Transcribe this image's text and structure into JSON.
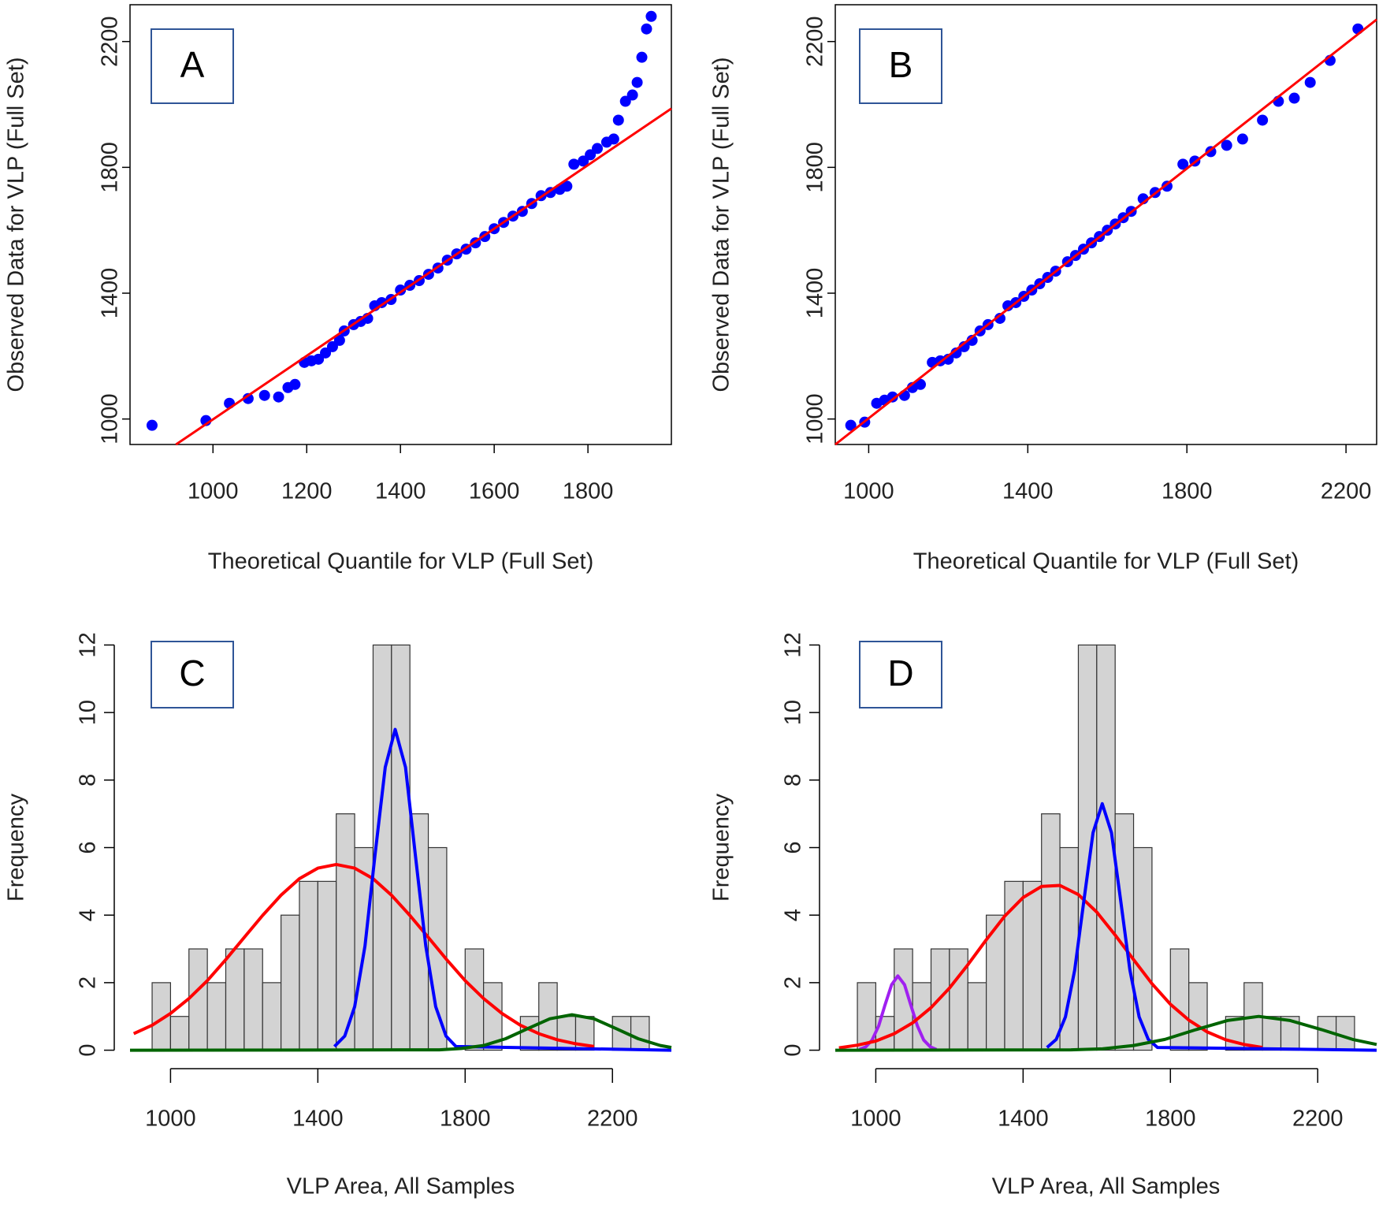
{
  "chart_data": [
    {
      "type": "scatter",
      "label": "A",
      "xlabel": "Theoretical Quantile for VLP (Full Set)",
      "ylabel": "Observed Data for VLP (Full Set)",
      "xlim": [
        823,
        1978
      ],
      "ylim": [
        919,
        2317
      ],
      "xticks": [
        1000,
        1200,
        1400,
        1600,
        1800
      ],
      "yticks": [
        1000,
        1400,
        1800,
        2200
      ],
      "color": "#0000ff",
      "x": [
        870,
        985,
        1035,
        1075,
        1110,
        1140,
        1160,
        1175,
        1195,
        1210,
        1225,
        1240,
        1255,
        1270,
        1280,
        1300,
        1315,
        1330,
        1345,
        1360,
        1380,
        1400,
        1420,
        1440,
        1460,
        1480,
        1500,
        1520,
        1540,
        1560,
        1580,
        1600,
        1620,
        1640,
        1660,
        1680,
        1700,
        1720,
        1740,
        1755,
        1770,
        1790,
        1805,
        1820,
        1840,
        1855,
        1865,
        1880,
        1895,
        1905,
        1915,
        1925,
        1935
      ],
      "values": [
        980,
        995,
        1050,
        1065,
        1075,
        1070,
        1100,
        1110,
        1180,
        1185,
        1190,
        1210,
        1230,
        1250,
        1280,
        1300,
        1310,
        1320,
        1360,
        1370,
        1380,
        1410,
        1425,
        1440,
        1460,
        1480,
        1505,
        1525,
        1540,
        1560,
        1580,
        1605,
        1625,
        1645,
        1660,
        1685,
        1710,
        1720,
        1730,
        1740,
        1810,
        1820,
        1840,
        1860,
        1880,
        1890,
        1950,
        2010,
        2030,
        2070,
        2150,
        2240,
        2280
      ],
      "line": {
        "color": "#ff0000",
        "x": [
          921,
          1978
        ],
        "values": [
          919,
          1987
        ]
      }
    },
    {
      "type": "scatter",
      "label": "B",
      "xlabel": "Theoretical Quantile for VLP (Full Set)",
      "ylabel": "Observed Data for VLP (Full Set)",
      "xlim": [
        916,
        2277
      ],
      "ylim": [
        919,
        2317
      ],
      "xticks": [
        1000,
        1400,
        1800,
        2200
      ],
      "yticks": [
        1000,
        1400,
        1800,
        2200
      ],
      "color": "#0000ff",
      "x": [
        955,
        990,
        1020,
        1040,
        1060,
        1090,
        1110,
        1130,
        1160,
        1180,
        1200,
        1220,
        1240,
        1260,
        1280,
        1300,
        1330,
        1350,
        1370,
        1390,
        1410,
        1430,
        1450,
        1470,
        1500,
        1520,
        1540,
        1560,
        1580,
        1600,
        1620,
        1640,
        1660,
        1690,
        1720,
        1750,
        1790,
        1820,
        1860,
        1900,
        1940,
        1990,
        2030,
        2070,
        2110,
        2160,
        2230
      ],
      "values": [
        980,
        990,
        1050,
        1060,
        1070,
        1075,
        1100,
        1110,
        1180,
        1185,
        1190,
        1210,
        1230,
        1250,
        1280,
        1300,
        1320,
        1360,
        1370,
        1390,
        1410,
        1430,
        1450,
        1470,
        1500,
        1520,
        1540,
        1560,
        1580,
        1600,
        1620,
        1640,
        1660,
        1700,
        1720,
        1740,
        1810,
        1820,
        1850,
        1870,
        1890,
        1950,
        2010,
        2020,
        2070,
        2140,
        2240
      ],
      "line": {
        "color": "#ff0000",
        "x": [
          916,
          2277
        ],
        "values": [
          919,
          2270
        ]
      }
    },
    {
      "type": "histogram",
      "label": "C",
      "xlabel": "VLP Area, All Samples",
      "ylabel": "Frequency",
      "xlim": [
        890,
        2360
      ],
      "ylim": [
        -0.5,
        12.5
      ],
      "xticks": [
        1000,
        1400,
        1800,
        2200
      ],
      "yticks": [
        0,
        2,
        4,
        6,
        8,
        10,
        12
      ],
      "color": "#d3d3d3",
      "bins": [
        950,
        1000,
        1050,
        1100,
        1150,
        1200,
        1250,
        1300,
        1350,
        1400,
        1450,
        1500,
        1550,
        1600,
        1650,
        1700,
        1750,
        1800,
        1850,
        1900,
        1950,
        2000,
        2050,
        2100,
        2150,
        2200,
        2250,
        2300
      ],
      "values": [
        2,
        1,
        3,
        2,
        3,
        3,
        2,
        4,
        5,
        5,
        7,
        6,
        12,
        12,
        7,
        6,
        0,
        3,
        2,
        0,
        1,
        2,
        1,
        1,
        0,
        1,
        1
      ],
      "curves": [
        {
          "color": "#ff0000",
          "x": [
            900,
            950,
            1000,
            1050,
            1100,
            1150,
            1200,
            1250,
            1300,
            1350,
            1400,
            1450,
            1500,
            1550,
            1600,
            1650,
            1700,
            1750,
            1800,
            1850,
            1900,
            1950,
            2000,
            2050,
            2100,
            2150
          ],
          "values": [
            0.49,
            0.74,
            1.09,
            1.53,
            2.06,
            2.68,
            3.34,
            3.99,
            4.59,
            5.08,
            5.39,
            5.5,
            5.39,
            5.08,
            4.59,
            3.99,
            3.34,
            2.68,
            2.06,
            1.53,
            1.09,
            0.74,
            0.49,
            0.31,
            0.19,
            0.11
          ]
        },
        {
          "color": "#0000ff",
          "x": [
            1445,
            1473,
            1500,
            1528,
            1555,
            1583,
            1610,
            1638,
            1665,
            1693,
            1720,
            1748,
            1775,
            2360
          ],
          "values": [
            0.11,
            0.42,
            1.29,
            3.09,
            5.76,
            8.38,
            9.5,
            8.38,
            5.76,
            3.09,
            1.29,
            0.42,
            0.11,
            0
          ]
        },
        {
          "color": "#006400",
          "x": [
            890,
            1730,
            1790,
            1850,
            1910,
            1970,
            2030,
            2090,
            2150,
            2210,
            2270,
            2330,
            2360
          ],
          "values": [
            0,
            0.01,
            0.05,
            0.14,
            0.34,
            0.64,
            0.93,
            1.05,
            0.93,
            0.64,
            0.34,
            0.14,
            0.08
          ]
        }
      ]
    },
    {
      "type": "histogram",
      "label": "D",
      "xlabel": "VLP Area, All Samples",
      "ylabel": "Frequency",
      "xlim": [
        890,
        2360
      ],
      "ylim": [
        -0.5,
        12.5
      ],
      "xticks": [
        1000,
        1400,
        1800,
        2200
      ],
      "yticks": [
        0,
        2,
        4,
        6,
        8,
        10,
        12
      ],
      "color": "#d3d3d3",
      "bins": [
        950,
        1000,
        1050,
        1100,
        1150,
        1200,
        1250,
        1300,
        1350,
        1400,
        1450,
        1500,
        1550,
        1600,
        1650,
        1700,
        1750,
        1800,
        1850,
        1900,
        1950,
        2000,
        2050,
        2100,
        2150,
        2200,
        2250,
        2300
      ],
      "values": [
        2,
        1,
        3,
        2,
        3,
        3,
        2,
        4,
        5,
        5,
        7,
        6,
        12,
        12,
        7,
        6,
        0,
        3,
        2,
        0,
        1,
        2,
        1,
        1,
        0,
        1,
        1
      ],
      "curves": [
        {
          "color": "#a020f0",
          "x": [
            955,
            973,
            990,
            1008,
            1025,
            1043,
            1060,
            1078,
            1095,
            1113,
            1130,
            1148,
            1165
          ],
          "values": [
            0.02,
            0.1,
            0.3,
            0.72,
            1.34,
            1.94,
            2.2,
            1.94,
            1.34,
            0.72,
            0.3,
            0.1,
            0.02
          ]
        },
        {
          "color": "#ff0000",
          "x": [
            900,
            950,
            1000,
            1050,
            1100,
            1150,
            1200,
            1250,
            1300,
            1350,
            1400,
            1450,
            1500,
            1550,
            1600,
            1650,
            1700,
            1750,
            1800,
            1850,
            1900,
            1950,
            2000,
            2050
          ],
          "values": [
            0.07,
            0.15,
            0.27,
            0.49,
            0.81,
            1.26,
            1.84,
            2.53,
            3.27,
            3.97,
            4.52,
            4.85,
            4.88,
            4.61,
            4.09,
            3.41,
            2.68,
            1.97,
            1.36,
            0.89,
            0.54,
            0.31,
            0.17,
            0.08
          ]
        },
        {
          "color": "#0000ff",
          "x": [
            1465,
            1490,
            1515,
            1540,
            1565,
            1590,
            1615,
            1640,
            1665,
            1690,
            1715,
            1740,
            1765,
            2360
          ],
          "values": [
            0.08,
            0.32,
            0.99,
            2.37,
            4.43,
            6.44,
            7.3,
            6.44,
            4.43,
            2.37,
            0.99,
            0.32,
            0.08,
            0
          ]
        },
        {
          "color": "#006400",
          "x": [
            890,
            1530,
            1615,
            1700,
            1785,
            1870,
            1955,
            2040,
            2125,
            2210,
            2295,
            2360
          ],
          "values": [
            0,
            0.01,
            0.04,
            0.14,
            0.32,
            0.61,
            0.88,
            1.0,
            0.88,
            0.61,
            0.32,
            0.17
          ]
        }
      ]
    }
  ]
}
